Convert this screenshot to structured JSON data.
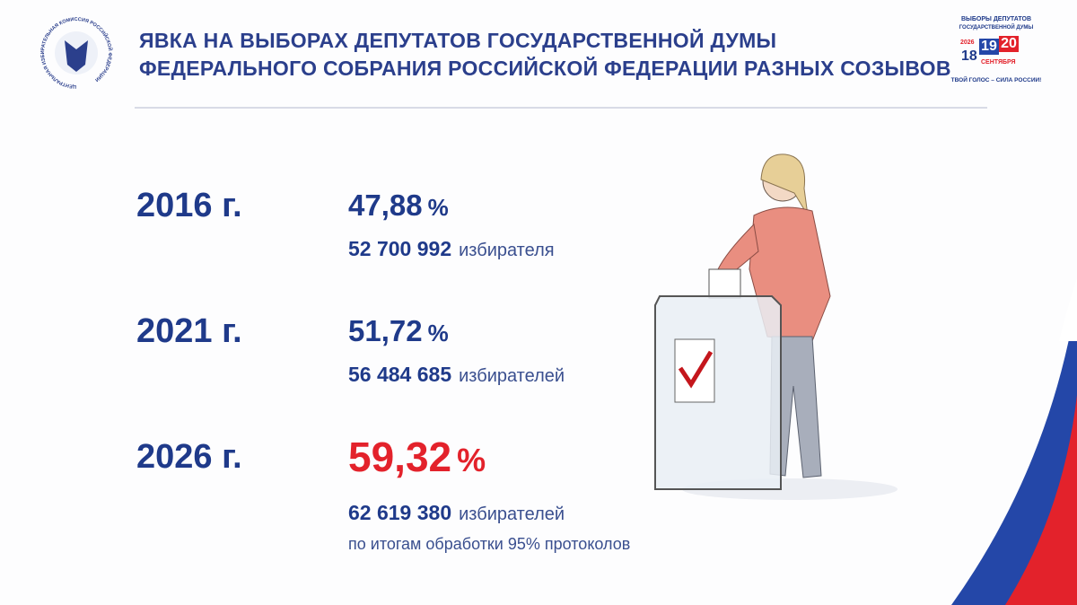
{
  "header": {
    "title_lines": [
      "ЯВКА НА ВЫБОРАХ ДЕПУТАТОВ ГОСУДАРСТВЕННОЙ ДУМЫ",
      "ФЕДЕРАЛЬНОГО СОБРАНИЯ РОССИЙСКОЙ ФЕДЕРАЦИИ РАЗНЫХ СОЗЫВОВ"
    ],
    "emblem_text": "ЦЕНТРАЛЬНАЯ ИЗБИРАТЕЛЬНАЯ КОМИССИЯ РОССИЙСКОЙ ФЕДЕРАЦИИ"
  },
  "badge": {
    "line1": "ВЫБОРЫ ДЕПУТАТОВ",
    "line2": "ГОСУДАРСТВЕННОЙ ДУМЫ",
    "year": "2026",
    "days": [
      "18",
      "19",
      "20"
    ],
    "month": "СЕНТЯБРЯ",
    "slogan": "ТВОЙ ГОЛОС – СИЛА РОССИИ!"
  },
  "rows": [
    {
      "year": "2016 г.",
      "percent": "47,88",
      "percent_sign": "%",
      "count": "52 700 992",
      "unit": "избирателя"
    },
    {
      "year": "2021 г.",
      "percent": "51,72",
      "percent_sign": "%",
      "count": "56 484 685",
      "unit": "избирателей"
    },
    {
      "year": "2026 г.",
      "percent": "59,32",
      "percent_sign": "%",
      "count": "62 619 380",
      "unit": "избирателей",
      "note": "по итогам обработки 95% протоколов"
    }
  ]
}
